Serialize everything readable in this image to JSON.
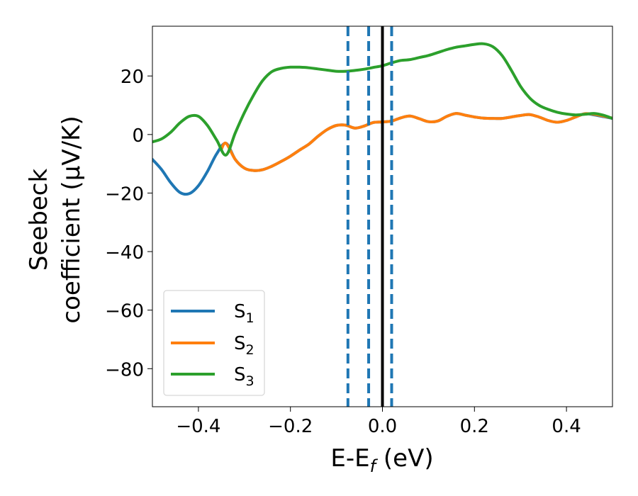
{
  "chart_data": {
    "type": "line",
    "xlabel": "E-E",
    "xlabel_sub": "f",
    "xlabel_unit": " (eV)",
    "ylabel_line1": "Seebeck",
    "ylabel_line2": "coefficient  (μV/K)",
    "xlim": [
      -0.5,
      0.5
    ],
    "ylim": [
      -93,
      37
    ],
    "xticks": [
      -0.4,
      -0.2,
      0.0,
      0.2,
      0.4
    ],
    "xtick_labels": [
      "−0.4",
      "−0.2",
      "0.0",
      "0.2",
      "0.4"
    ],
    "yticks": [
      20,
      0,
      -20,
      -40,
      -60,
      -80
    ],
    "ytick_labels": [
      "20",
      "0",
      "−20",
      "−40",
      "−60",
      "−80"
    ],
    "grid": false,
    "legend_position": "lower-left",
    "vlines": [
      {
        "x": -0.075,
        "style": "dashed",
        "color": "#1f77b4"
      },
      {
        "x": -0.03,
        "style": "dashed",
        "color": "#1f77b4"
      },
      {
        "x": 0.0,
        "style": "solid",
        "color": "#000000"
      },
      {
        "x": 0.02,
        "style": "dashed",
        "color": "#1f77b4"
      }
    ],
    "series": [
      {
        "name": "S",
        "sub": "1",
        "color": "#1f77b4",
        "x": [
          -0.5,
          -0.48,
          -0.46,
          -0.44,
          -0.42,
          -0.4,
          -0.38,
          -0.36,
          -0.34,
          -0.32,
          -0.3,
          -0.28,
          -0.26,
          -0.24,
          -0.22,
          -0.2,
          -0.18,
          -0.16,
          -0.14,
          -0.12,
          -0.1,
          -0.08,
          -0.06,
          -0.04,
          -0.02,
          0.0,
          0.02,
          0.04,
          0.06,
          0.08,
          0.1,
          0.12,
          0.14,
          0.16,
          0.18,
          0.2,
          0.22,
          0.24,
          0.26,
          0.28,
          0.3,
          0.32,
          0.34,
          0.36,
          0.38,
          0.4,
          0.42,
          0.44,
          0.46,
          0.48,
          0.5
        ],
        "y": [
          -8.5,
          -12,
          -16.5,
          -19.8,
          -20.2,
          -17.5,
          -12.5,
          -6.5,
          -3,
          -8.5,
          -11.5,
          -12.3,
          -12,
          -10.8,
          -9.2,
          -7.4,
          -5.3,
          -3.3,
          -0.6,
          1.7,
          3.1,
          3.2,
          2.2,
          2.9,
          4.1,
          4.3,
          4.6,
          5.7,
          6.3,
          5.4,
          4.4,
          4.6,
          6.2,
          7.2,
          6.6,
          6.0,
          5.6,
          5.5,
          5.5,
          6.0,
          6.5,
          6.8,
          6.0,
          4.8,
          4.2,
          4.8,
          6.0,
          7.1,
          6.7,
          6.1,
          5.5
        ]
      },
      {
        "name": "S",
        "sub": "2",
        "color": "#ff7f0e",
        "x": [
          -0.35,
          -0.34,
          -0.32,
          -0.3,
          -0.28,
          -0.26,
          -0.24,
          -0.22,
          -0.2,
          -0.18,
          -0.16,
          -0.14,
          -0.12,
          -0.1,
          -0.08,
          -0.06,
          -0.04,
          -0.02,
          0.0,
          0.02,
          0.04,
          0.06,
          0.08,
          0.1,
          0.12,
          0.14,
          0.16,
          0.18,
          0.2,
          0.22,
          0.24,
          0.26,
          0.28,
          0.3,
          0.32,
          0.34,
          0.36,
          0.38,
          0.4,
          0.42,
          0.44,
          0.46,
          0.48,
          0.5
        ],
        "y": [
          -5,
          -3,
          -8.5,
          -11.5,
          -12.3,
          -12,
          -10.8,
          -9.2,
          -7.4,
          -5.3,
          -3.3,
          -0.6,
          1.7,
          3.1,
          3.2,
          2.2,
          2.9,
          4.1,
          4.3,
          4.6,
          5.7,
          6.3,
          5.4,
          4.4,
          4.6,
          6.2,
          7.2,
          6.6,
          6.0,
          5.6,
          5.5,
          5.5,
          6.0,
          6.5,
          6.8,
          6.0,
          4.8,
          4.2,
          4.8,
          6.0,
          7.1,
          6.9,
          6.3,
          5.6
        ]
      },
      {
        "name": "S",
        "sub": "3",
        "color": "#2ca02c",
        "x": [
          -0.5,
          -0.48,
          -0.46,
          -0.44,
          -0.42,
          -0.4,
          -0.38,
          -0.36,
          -0.34,
          -0.32,
          -0.3,
          -0.28,
          -0.26,
          -0.24,
          -0.22,
          -0.2,
          -0.18,
          -0.16,
          -0.14,
          -0.12,
          -0.1,
          -0.08,
          -0.06,
          -0.04,
          -0.02,
          0.0,
          0.02,
          0.04,
          0.06,
          0.08,
          0.1,
          0.12,
          0.14,
          0.16,
          0.18,
          0.2,
          0.22,
          0.24,
          0.26,
          0.28,
          0.3,
          0.32,
          0.34,
          0.36,
          0.38,
          0.4,
          0.42,
          0.44,
          0.46,
          0.48,
          0.5
        ],
        "y": [
          -2.5,
          -1.5,
          0.8,
          4,
          6.2,
          6.2,
          3,
          -2,
          -7,
          0.5,
          7.5,
          13.5,
          18.5,
          21.5,
          22.6,
          23.0,
          23.0,
          22.8,
          22.4,
          22.0,
          21.6,
          21.6,
          21.9,
          22.3,
          22.9,
          23.5,
          24.5,
          25.3,
          25.6,
          26.3,
          27.0,
          28.0,
          29.0,
          29.8,
          30.3,
          30.8,
          31.0,
          30.0,
          27.0,
          22.0,
          16.5,
          12.5,
          10.0,
          8.6,
          7.6,
          7.0,
          6.7,
          6.9,
          7.2,
          6.6,
          5.5
        ]
      }
    ]
  }
}
